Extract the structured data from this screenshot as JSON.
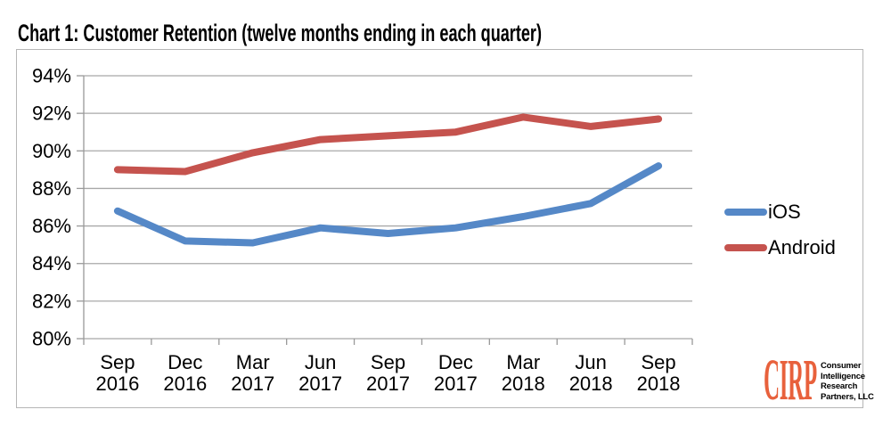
{
  "chart_data": {
    "type": "line",
    "title": "Chart 1: Customer Retention (twelve months ending in each quarter)",
    "categories": [
      "Sep 2016",
      "Dec 2016",
      "Mar 2017",
      "Jun 2017",
      "Sep 2017",
      "Dec 2017",
      "Mar 2018",
      "Jun 2018",
      "Sep 2018"
    ],
    "series": [
      {
        "name": "iOS",
        "color": "#5588C7",
        "values": [
          86.8,
          85.2,
          85.1,
          85.9,
          85.6,
          85.9,
          86.5,
          87.2,
          89.2
        ]
      },
      {
        "name": "Android",
        "color": "#C5534E",
        "values": [
          89.0,
          88.9,
          89.9,
          90.6,
          90.8,
          91.0,
          91.8,
          91.3,
          91.7
        ]
      }
    ],
    "xlabel": "",
    "ylabel": "",
    "ylim": [
      80,
      94
    ],
    "y_tick_step": 2,
    "y_tick_labels_top_to_bottom": [
      "94%",
      "92%",
      "90%",
      "88%",
      "86%",
      "84%",
      "82%",
      "80%"
    ],
    "unit": "%",
    "grid": true,
    "legend_position": "right",
    "gridline_color": "#a8a8a8",
    "axis_color": "#999999"
  },
  "logo": {
    "brand": "CIRP",
    "brand_color": "#E8613C",
    "lines": [
      "Consumer",
      "Intelligence",
      "Research",
      "Partners, LLC"
    ]
  }
}
